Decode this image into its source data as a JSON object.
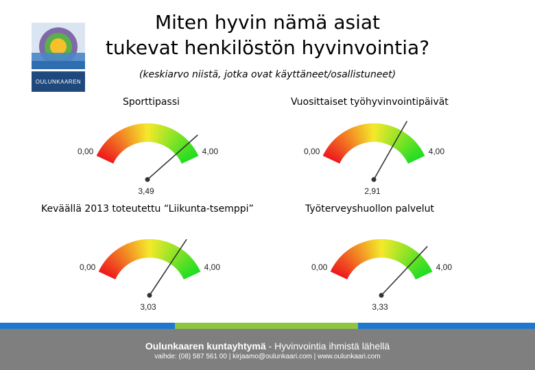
{
  "title_line1": "Miten hyvin nämä asiat",
  "title_line2": "tukevat henkilöstön hyvinvointia?",
  "subtitle": "(keskiarvo niistä, jotka ovat käyttäneet/osallistuneet)",
  "logo_text": "OULUNKAAREN",
  "chart_data": [
    {
      "type": "gauge",
      "title": "Sporttipassi",
      "min": 0,
      "max": 4,
      "min_label": "0,00",
      "max_label": "4,00",
      "value": 3.49,
      "value_label": "3,49"
    },
    {
      "type": "gauge",
      "title": "Vuosittaiset työhyvinvointipäivät",
      "min": 0,
      "max": 4,
      "min_label": "0,00",
      "max_label": "4,00",
      "value": 2.91,
      "value_label": "2,91"
    },
    {
      "type": "gauge",
      "title": "Keväällä 2013 toteutettu “Liikunta-tsemppi”",
      "min": 0,
      "max": 4,
      "min_label": "0,00",
      "max_label": "4,00",
      "value": 3.03,
      "value_label": "3,03"
    },
    {
      "type": "gauge",
      "title": "Työterveyshuollon palvelut",
      "min": 0,
      "max": 4,
      "min_label": "0,00",
      "max_label": "4,00",
      "value": 3.33,
      "value_label": "3,33"
    }
  ],
  "footer": {
    "org": "Oulunkaaren kuntayhtymä",
    "separator": " - ",
    "slogan": "Hyvinvointia ihmistä lähellä",
    "contact": "vaihde: (08) 587 561 00  |  kirjaamo@oulunkaari.com  |  www.oulunkaari.com"
  },
  "colors": {
    "footer_bg": "#7f7f7f",
    "strip_blue": "#1f77d0",
    "strip_green": "#8dc63f",
    "gauge_low": "#ee1c1c",
    "gauge_mid": "#f5e92a",
    "gauge_high": "#22dd22"
  }
}
